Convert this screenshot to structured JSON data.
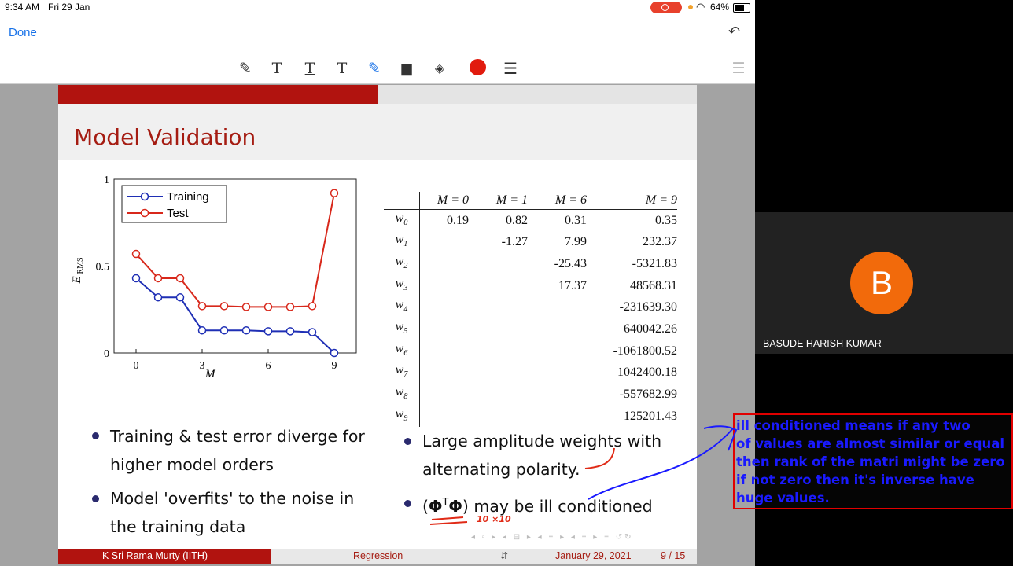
{
  "status_bar": {
    "time": "9:34 AM",
    "date": "Fri 29 Jan",
    "battery": "64%",
    "record_color": "#e8412c"
  },
  "toolbar": {
    "done_label": "Done",
    "undo_icon": "undo-icon",
    "tools": [
      "pen-icon",
      "strikethrough-text-icon",
      "underline-text-icon",
      "text-icon",
      "highlighter-icon",
      "comment-icon",
      "eraser-icon",
      "color-swatch-icon",
      "line-weight-icon"
    ],
    "active_color": "#e11b0e"
  },
  "slide": {
    "title": "Model Validation",
    "plot": {
      "ylabel_E": "E",
      "ylabel_sub": "RMS",
      "xlabel": "M",
      "yticks": [
        "0",
        "0.5",
        "1"
      ],
      "xticks": [
        "0",
        "3",
        "6",
        "9"
      ],
      "legend": [
        "Training",
        "Test"
      ]
    },
    "table": {
      "headers": [
        "M = 0",
        "M = 1",
        "M = 6",
        "M = 9"
      ],
      "rows": [
        {
          "label": "w",
          "sub": "0",
          "vals": [
            "0.19",
            "0.82",
            "0.31",
            "0.35"
          ]
        },
        {
          "label": "w",
          "sub": "1",
          "vals": [
            "",
            "-1.27",
            "7.99",
            "232.37"
          ]
        },
        {
          "label": "w",
          "sub": "2",
          "vals": [
            "",
            "",
            "-25.43",
            "-5321.83"
          ]
        },
        {
          "label": "w",
          "sub": "3",
          "vals": [
            "",
            "",
            "17.37",
            "48568.31"
          ]
        },
        {
          "label": "w",
          "sub": "4",
          "vals": [
            "",
            "",
            "",
            "-231639.30"
          ]
        },
        {
          "label": "w",
          "sub": "5",
          "vals": [
            "",
            "",
            "",
            "640042.26"
          ]
        },
        {
          "label": "w",
          "sub": "6",
          "vals": [
            "",
            "",
            "",
            "-1061800.52"
          ]
        },
        {
          "label": "w",
          "sub": "7",
          "vals": [
            "",
            "",
            "",
            "1042400.18"
          ]
        },
        {
          "label": "w",
          "sub": "8",
          "vals": [
            "",
            "",
            "",
            "-557682.99"
          ]
        },
        {
          "label": "w",
          "sub": "9",
          "vals": [
            "",
            "",
            "",
            "125201.43"
          ]
        }
      ]
    },
    "bullets_left": [
      {
        "line1": "Training & test error diverge for",
        "line2": "higher model orders"
      },
      {
        "line1": "Model 'overfits' to the noise in",
        "line2": "the training data"
      }
    ],
    "bullets_right": [
      {
        "line1": "Large amplitude weights with",
        "line2": "alternating polarity."
      },
      {
        "pre": "(",
        "phi": "Φ",
        "sup": "T",
        "phi2": "Φ",
        "post": ") may be ill conditioned"
      }
    ],
    "handwritten_note": "10 ×10",
    "footer": {
      "author": "K Sri Rama Murty  (IITH)",
      "topic": "Regression",
      "date": "January 29, 2021",
      "page": "9 / 15"
    }
  },
  "chart_data": {
    "type": "line",
    "xlabel": "M",
    "ylabel": "E_RMS",
    "xlim": [
      -1,
      10
    ],
    "ylim": [
      0,
      1
    ],
    "xticks": [
      0,
      3,
      6,
      9
    ],
    "yticks": [
      0,
      0.5,
      1
    ],
    "legend_position": "top-left",
    "x": [
      0,
      1,
      2,
      3,
      4,
      5,
      6,
      7,
      8,
      9
    ],
    "series": [
      {
        "name": "Training",
        "color": "#1f2fb5",
        "values": [
          0.43,
          0.32,
          0.32,
          0.13,
          0.13,
          0.13,
          0.125,
          0.125,
          0.12,
          0.0
        ]
      },
      {
        "name": "Test",
        "color": "#d8281b",
        "values": [
          0.57,
          0.43,
          0.43,
          0.27,
          0.27,
          0.265,
          0.265,
          0.265,
          0.27,
          0.92
        ]
      }
    ]
  },
  "participant": {
    "initial": "B",
    "name": "BASUDE HARISH KUMAR"
  },
  "annotation": {
    "lines": [
      "ill conditioned means if any two",
      "of values are almost similar or equal",
      "then rank of the matri might be zero",
      "if not zero then it's inverse have",
      "huge values."
    ]
  }
}
